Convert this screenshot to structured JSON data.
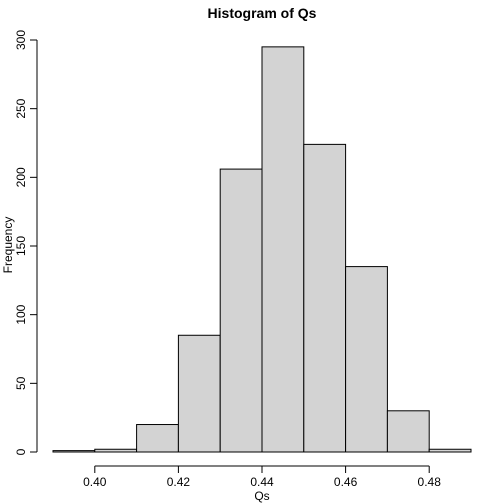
{
  "chart_data": {
    "type": "histogram",
    "title": "Histogram of Qs",
    "xlabel": "Qs",
    "ylabel": "Frequency",
    "bins": [
      {
        "start": 0.39,
        "end": 0.4,
        "count": 1
      },
      {
        "start": 0.4,
        "end": 0.41,
        "count": 2
      },
      {
        "start": 0.41,
        "end": 0.42,
        "count": 20
      },
      {
        "start": 0.42,
        "end": 0.43,
        "count": 85
      },
      {
        "start": 0.43,
        "end": 0.44,
        "count": 206
      },
      {
        "start": 0.44,
        "end": 0.45,
        "count": 295
      },
      {
        "start": 0.45,
        "end": 0.46,
        "count": 224
      },
      {
        "start": 0.46,
        "end": 0.47,
        "count": 135
      },
      {
        "start": 0.47,
        "end": 0.48,
        "count": 30
      },
      {
        "start": 0.48,
        "end": 0.49,
        "count": 2
      }
    ],
    "x_ticks": [
      "0.40",
      "0.42",
      "0.44",
      "0.46",
      "0.48"
    ],
    "y_ticks": [
      "0",
      "50",
      "100",
      "150",
      "200",
      "250",
      "300"
    ],
    "xlim": [
      0.39,
      0.49
    ],
    "ylim": [
      0,
      300
    ],
    "grid": false,
    "bar_color": "#d3d3d3"
  }
}
